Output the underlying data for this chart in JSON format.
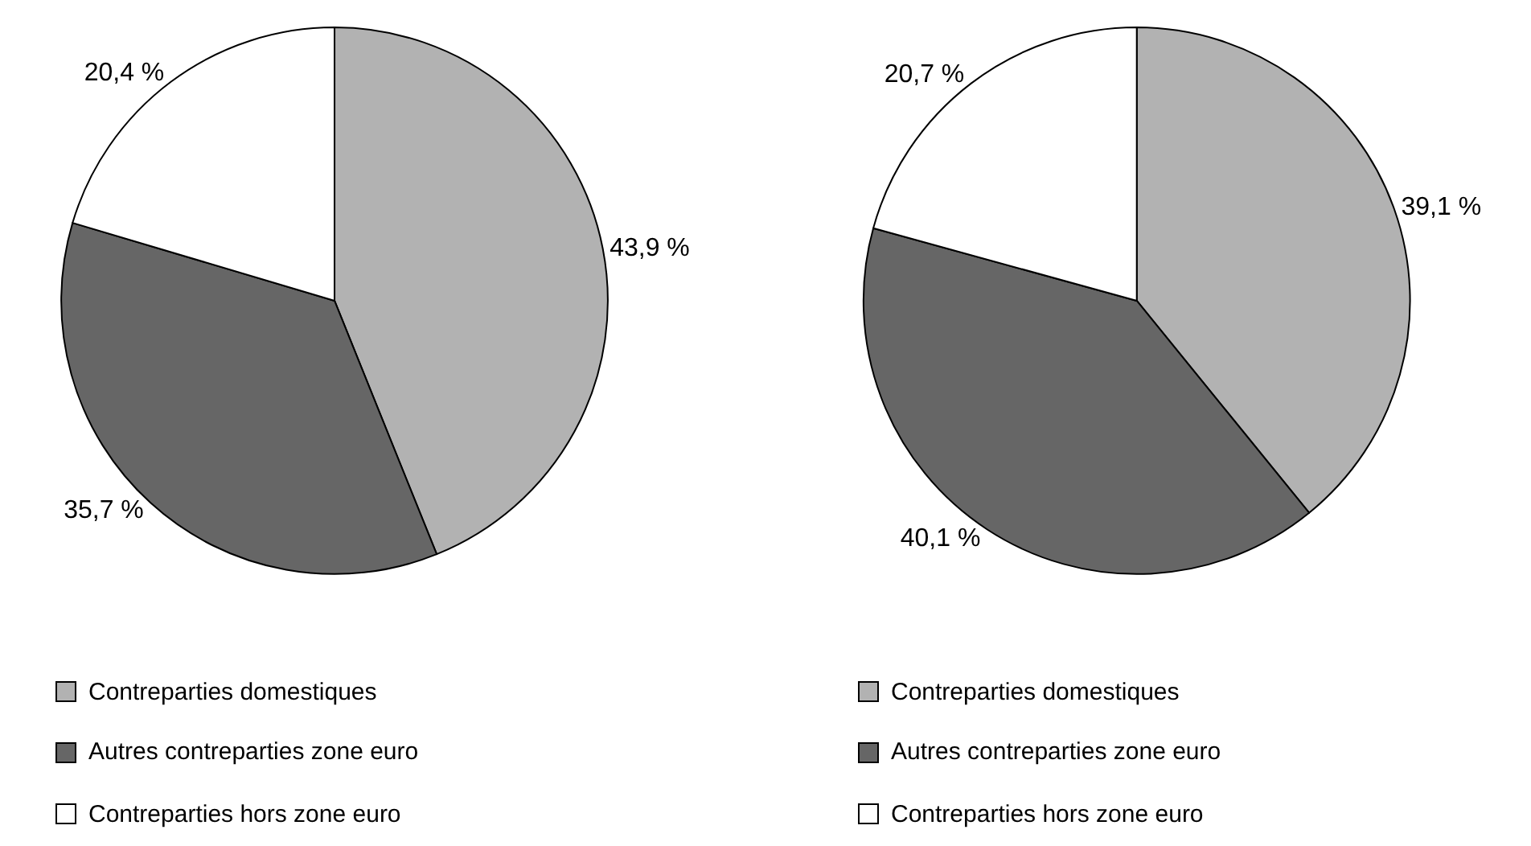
{
  "chart_data": [
    {
      "type": "pie",
      "categories": [
        "Contreparties domestiques",
        "Autres contreparties zone euro",
        "Contreparties hors zone euro"
      ],
      "values": [
        43.9,
        35.7,
        20.4
      ],
      "colors": [
        "#b2b2b2",
        "#666666",
        "#ffffff"
      ],
      "value_labels": [
        "43,9 %",
        "35,7 %",
        "20,4 %"
      ],
      "legend": "bottom"
    },
    {
      "type": "pie",
      "categories": [
        "Contreparties domestiques",
        "Autres contreparties zone euro",
        "Contreparties hors zone euro"
      ],
      "values": [
        39.1,
        40.1,
        20.7
      ],
      "colors": [
        "#b2b2b2",
        "#666666",
        "#ffffff"
      ],
      "value_labels": [
        "39,1 %",
        "40,1 %",
        "20,7 %"
      ],
      "legend": "bottom"
    }
  ]
}
